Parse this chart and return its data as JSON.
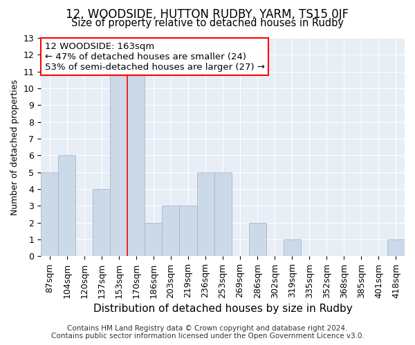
{
  "title": "12, WOODSIDE, HUTTON RUDBY, YARM, TS15 0JF",
  "subtitle": "Size of property relative to detached houses in Rudby",
  "xlabel": "Distribution of detached houses by size in Rudby",
  "ylabel": "Number of detached properties",
  "categories": [
    "87sqm",
    "104sqm",
    "120sqm",
    "137sqm",
    "153sqm",
    "170sqm",
    "186sqm",
    "203sqm",
    "219sqm",
    "236sqm",
    "253sqm",
    "269sqm",
    "286sqm",
    "302sqm",
    "319sqm",
    "335sqm",
    "352sqm",
    "368sqm",
    "385sqm",
    "401sqm",
    "418sqm"
  ],
  "values": [
    5,
    6,
    0,
    4,
    11,
    11,
    2,
    3,
    3,
    5,
    5,
    0,
    2,
    0,
    1,
    0,
    0,
    0,
    0,
    0,
    1
  ],
  "bar_color": "#ccd9e8",
  "bar_edgecolor": "#a0b8d0",
  "annotation_line1": "12 WOODSIDE: 163sqm",
  "annotation_line2": "← 47% of detached houses are smaller (24)",
  "annotation_line3": "53% of semi-detached houses are larger (27) →",
  "annotation_box_color": "white",
  "annotation_box_edgecolor": "red",
  "vline_x": 4.5,
  "vline_color": "red",
  "vline_linewidth": 1.2,
  "ylim": [
    0,
    13
  ],
  "yticks": [
    0,
    1,
    2,
    3,
    4,
    5,
    6,
    7,
    8,
    9,
    10,
    11,
    12,
    13
  ],
  "title_fontsize": 12,
  "subtitle_fontsize": 10.5,
  "xlabel_fontsize": 11,
  "ylabel_fontsize": 9,
  "tick_fontsize": 9,
  "annotation_fontsize": 9.5,
  "footer_line1": "Contains HM Land Registry data © Crown copyright and database right 2024.",
  "footer_line2": "Contains public sector information licensed under the Open Government Licence v3.0.",
  "footer_fontsize": 7.5,
  "background_color": "#e8eef5",
  "grid_color": "white",
  "fig_width": 6.0,
  "fig_height": 5.0,
  "dpi": 100
}
